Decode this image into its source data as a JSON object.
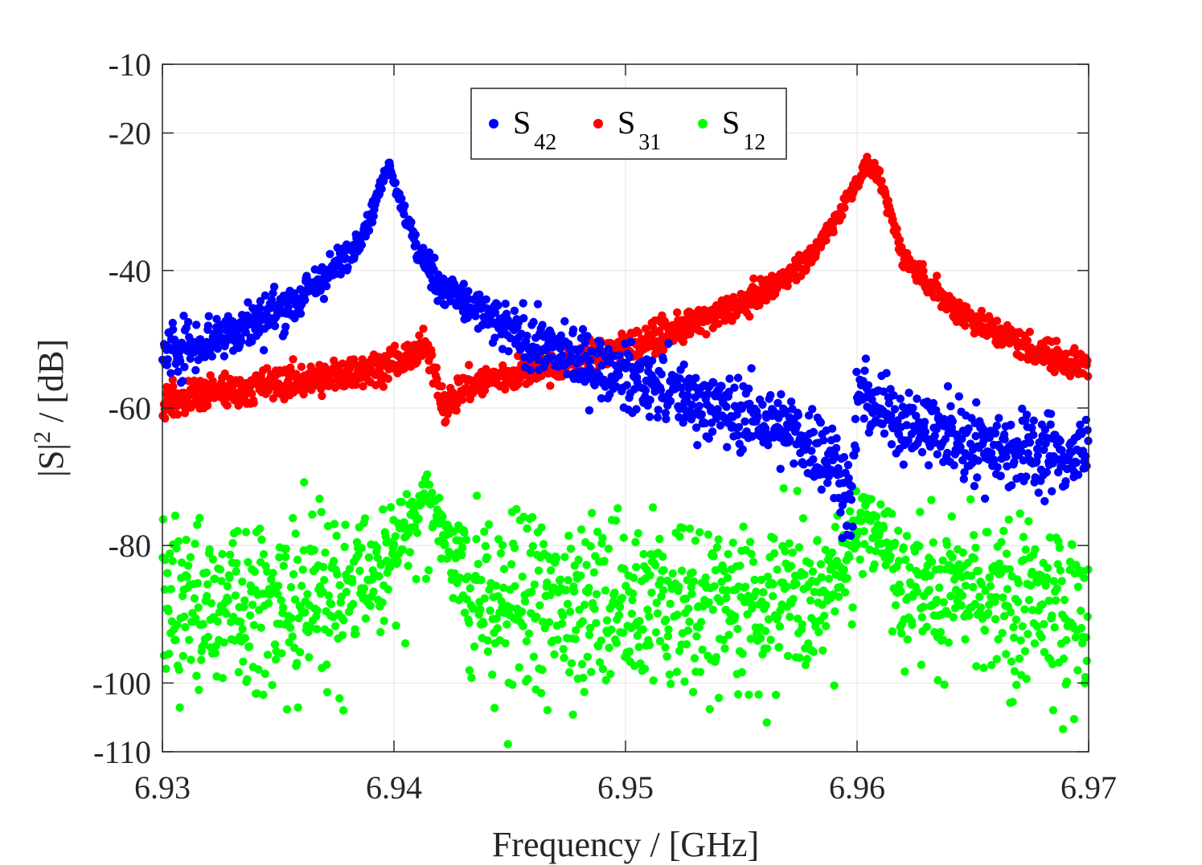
{
  "chart_data": {
    "type": "scatter",
    "title": "",
    "xlabel": "Frequency / [GHz]",
    "ylabel_parts": {
      "base": "|S|",
      "sup": "2",
      "rest": " / [dB]"
    },
    "xlim": [
      6.93,
      6.97
    ],
    "ylim": [
      -110,
      -10
    ],
    "x_ticks": [
      6.93,
      6.94,
      6.95,
      6.96,
      6.97
    ],
    "x_tick_labels": [
      "6.93",
      "6.94",
      "6.95",
      "6.96",
      "6.97"
    ],
    "y_ticks": [
      -110,
      -100,
      -80,
      -60,
      -40,
      -20,
      -10
    ],
    "y_tick_labels": [
      "-110",
      "-100",
      "-80",
      "-60",
      "-40",
      "-20",
      "-10"
    ],
    "grid": true,
    "legend": {
      "location": "top-center",
      "orientation": "horizontal"
    },
    "series": [
      {
        "name": "S42",
        "label_base": "S",
        "label_sub": "42",
        "color": "#0000ff",
        "x": [
          6.93,
          6.932,
          6.934,
          6.936,
          6.938,
          6.939,
          6.9395,
          6.9398,
          6.94,
          6.941,
          6.942,
          6.944,
          6.946,
          6.948,
          6.95,
          6.952,
          6.954,
          6.956,
          6.958,
          6.9585,
          6.959,
          6.9595,
          6.9598,
          6.96,
          6.961,
          6.962,
          6.964,
          6.966,
          6.968,
          6.97
        ],
        "values": [
          -52,
          -50,
          -47.5,
          -44,
          -38,
          -32,
          -27,
          -24.5,
          -27,
          -37,
          -42,
          -47,
          -50.5,
          -53,
          -55.5,
          -57.5,
          -60,
          -62,
          -65,
          -66,
          -68,
          -72,
          -74,
          -58,
          -60,
          -62,
          -64,
          -65.5,
          -66.5,
          -67
        ],
        "noise": [
          0.3,
          3.5
        ],
        "outliers": []
      },
      {
        "name": "S31",
        "label_base": "S",
        "label_sub": "31",
        "color": "#ff0000",
        "x": [
          6.93,
          6.932,
          6.934,
          6.936,
          6.938,
          6.94,
          6.941,
          6.9413,
          6.9418,
          6.9422,
          6.943,
          6.944,
          6.946,
          6.948,
          6.95,
          6.952,
          6.954,
          6.956,
          6.958,
          6.959,
          6.96,
          6.9605,
          6.961,
          6.962,
          6.964,
          6.966,
          6.968,
          6.97
        ],
        "values": [
          -59,
          -58,
          -57,
          -56,
          -55,
          -53.5,
          -52,
          -51,
          -55,
          -60,
          -57,
          -56,
          -54.5,
          -53,
          -51,
          -49,
          -46.5,
          -43,
          -38,
          -33,
          -27,
          -24.5,
          -27,
          -38,
          -45,
          -49,
          -52,
          -54
        ],
        "noise": [
          0.5,
          1.3
        ],
        "outliers": [
          [
            6.9327,
            -55
          ]
        ]
      },
      {
        "name": "S12",
        "label_base": "S",
        "label_sub": "12",
        "color": "#00ff00",
        "x": [
          6.93,
          6.932,
          6.934,
          6.936,
          6.938,
          6.939,
          6.94,
          6.941,
          6.9415,
          6.942,
          6.943,
          6.944,
          6.946,
          6.948,
          6.95,
          6.952,
          6.954,
          6.956,
          6.958,
          6.959,
          6.96,
          6.9605,
          6.961,
          6.962,
          6.964,
          6.966,
          6.968,
          6.97
        ],
        "values": [
          -88,
          -88,
          -87.5,
          -87,
          -85.5,
          -84,
          -81,
          -75,
          -72,
          -78,
          -85,
          -87,
          -87.5,
          -87.5,
          -88,
          -88,
          -87.5,
          -87,
          -86,
          -84,
          -78,
          -75,
          -77,
          -84,
          -87,
          -88,
          -88,
          -88
        ],
        "noise": [
          1,
          6
        ],
        "outliers": []
      }
    ]
  }
}
